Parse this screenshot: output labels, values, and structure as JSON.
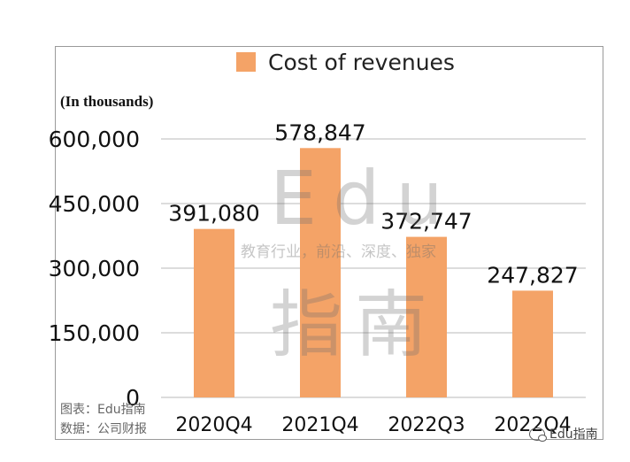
{
  "chart_data": {
    "type": "bar",
    "title": "",
    "legend": [
      "Cost of revenues"
    ],
    "unit_label": "(In thousands)",
    "categories": [
      "2020Q4",
      "2021Q4",
      "2022Q3",
      "2022Q4"
    ],
    "values": [
      391080,
      578847,
      372747,
      247827
    ],
    "value_labels": [
      "391,080",
      "578,847",
      "372,747",
      "247,827"
    ],
    "yticks": [
      0,
      150000,
      300000,
      450000,
      600000
    ],
    "ytick_labels": [
      "0",
      "150,000",
      "300,000",
      "450,000",
      "600,000"
    ],
    "ylim": [
      0,
      600000
    ],
    "xlabel": "",
    "ylabel": "",
    "grid": true,
    "bar_color": "#f4a367"
  },
  "footnote": {
    "line1": "图表：Edu指南",
    "line2": "数据：公司财报"
  },
  "watermark": {
    "edu": "Edu",
    "slogan": "教育行业，前沿、深度、独家",
    "brand": "指南"
  },
  "badge": {
    "label": "Edu指南",
    "icon": "wechat-icon"
  }
}
